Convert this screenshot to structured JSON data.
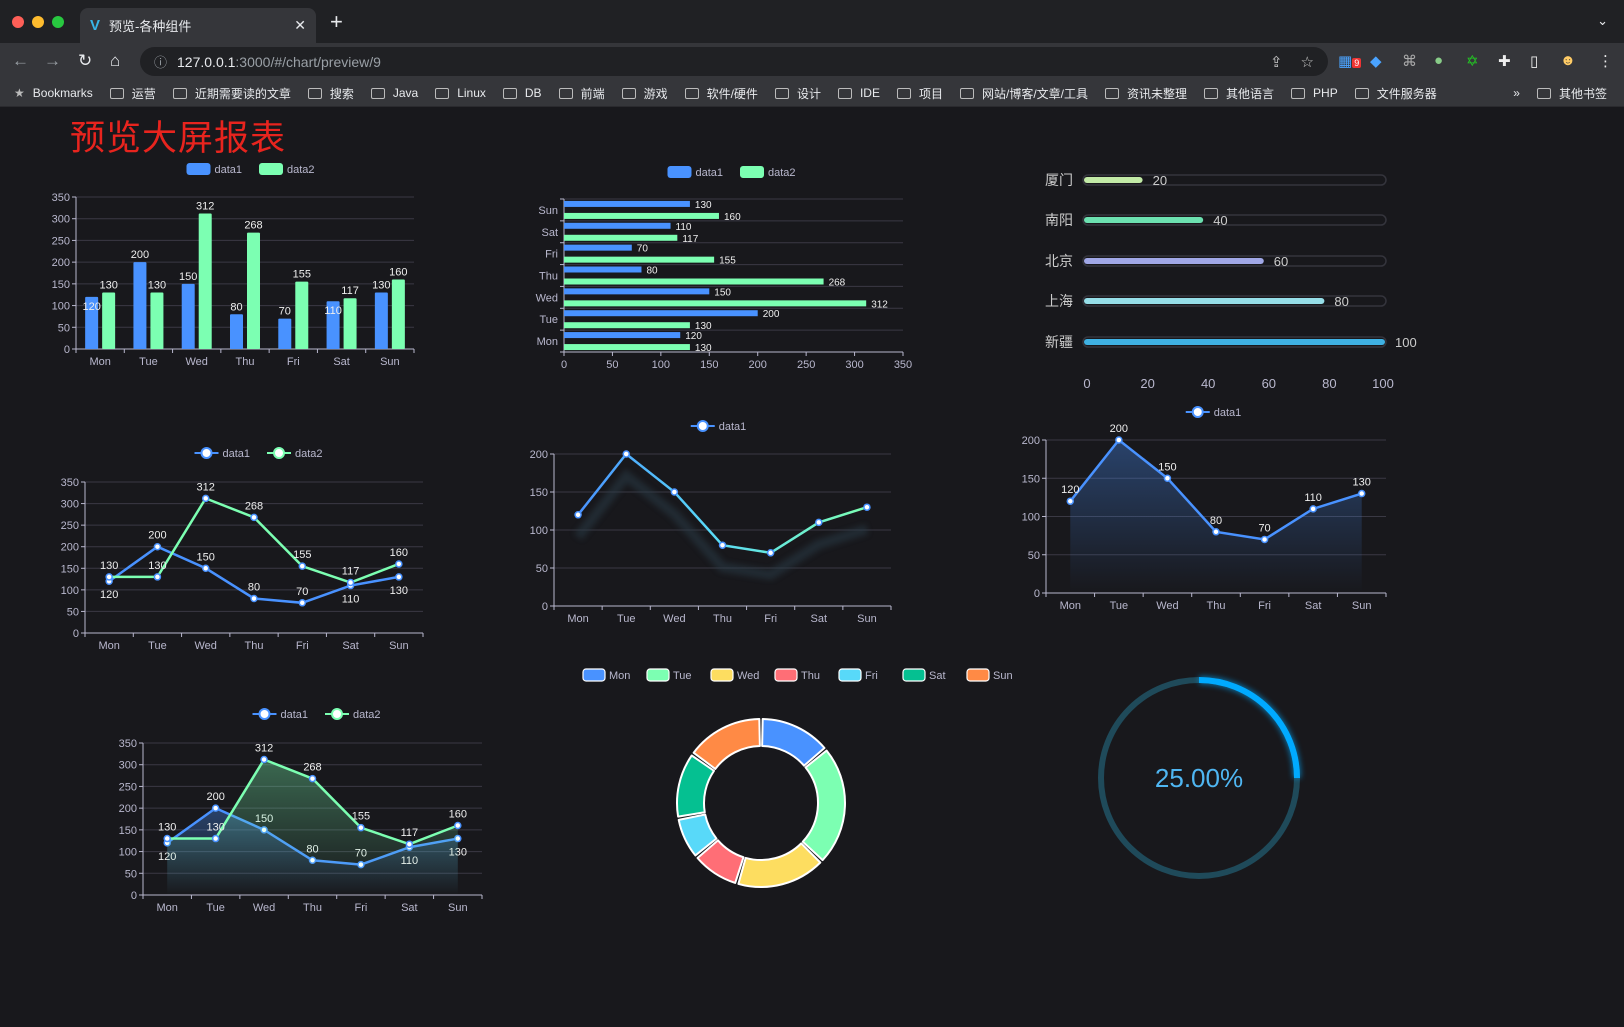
{
  "browser": {
    "tab_title": "预览-各种组件",
    "url_host": "127.0.0.1",
    "url_path": ":3000/#/chart/preview/9",
    "ext_badge": "9",
    "bookmarks_label": "Bookmarks",
    "bookmarks": [
      "运营",
      "近期需要读的文章",
      "搜索",
      "Java",
      "Linux",
      "DB",
      "前端",
      "游戏",
      "软件/硬件",
      "设计",
      "IDE",
      "项目",
      "网站/博客/文章/工具",
      "资讯未整理",
      "其他语言",
      "PHP",
      "文件服务器"
    ],
    "overflow": "»",
    "other_bookmarks": "其他书签"
  },
  "page": {
    "title": "预览大屏报表"
  },
  "colors": {
    "blue": "#4992ff",
    "green": "#7cffb2",
    "yellow": "#fddd60",
    "red": "#ff6e76",
    "cyan": "#58d9f9",
    "teal": "#05c091",
    "orange": "#ff8a45",
    "title": "#e8241e"
  },
  "chart_data": [
    {
      "id": "bar",
      "type": "bar",
      "categories": [
        "Mon",
        "Tue",
        "Wed",
        "Thu",
        "Fri",
        "Sat",
        "Sun"
      ],
      "series": [
        {
          "name": "data1",
          "values": [
            120,
            200,
            150,
            80,
            70,
            110,
            130
          ]
        },
        {
          "name": "data2",
          "values": [
            130,
            130,
            312,
            268,
            155,
            117,
            160
          ]
        }
      ],
      "ylim": [
        0,
        350
      ],
      "legend": "top-center",
      "grid": true,
      "data_labels": true
    },
    {
      "id": "hbar",
      "type": "bar",
      "orientation": "horizontal",
      "categories": [
        "Mon",
        "Tue",
        "Wed",
        "Thu",
        "Fri",
        "Sat",
        "Sun"
      ],
      "series": [
        {
          "name": "data1",
          "values": [
            120,
            200,
            150,
            80,
            70,
            110,
            130
          ]
        },
        {
          "name": "data2",
          "values": [
            130,
            130,
            312,
            268,
            155,
            117,
            160
          ]
        }
      ],
      "xlim": [
        0,
        350
      ],
      "legend": "top-center",
      "grid": true,
      "data_labels": true
    },
    {
      "id": "progress",
      "type": "bar",
      "orientation": "horizontal",
      "categories": [
        "厦门",
        "南阳",
        "北京",
        "上海",
        "新疆"
      ],
      "values": [
        20,
        40,
        60,
        80,
        100
      ],
      "colors": [
        "#c2eaa6",
        "#6ce0b0",
        "#a0a7e6",
        "#96dee8",
        "#3fb1e3"
      ],
      "xlim": [
        0,
        100
      ],
      "xticks": [
        0,
        20,
        40,
        60,
        80,
        100
      ]
    },
    {
      "id": "line2",
      "type": "line",
      "categories": [
        "Mon",
        "Tue",
        "Wed",
        "Thu",
        "Fri",
        "Sat",
        "Sun"
      ],
      "series": [
        {
          "name": "data1",
          "values": [
            120,
            200,
            150,
            80,
            70,
            110,
            130
          ]
        },
        {
          "name": "data2",
          "values": [
            130,
            130,
            312,
            268,
            155,
            117,
            160
          ]
        }
      ],
      "ylim": [
        0,
        350
      ],
      "legend": "top-center",
      "grid": true,
      "data_labels": true
    },
    {
      "id": "line1",
      "type": "line",
      "categories": [
        "Mon",
        "Tue",
        "Wed",
        "Thu",
        "Fri",
        "Sat",
        "Sun"
      ],
      "series": [
        {
          "name": "data1",
          "values": [
            120,
            200,
            150,
            80,
            70,
            110,
            130
          ]
        }
      ],
      "ylim": [
        0,
        200
      ],
      "legend": "top-center",
      "grid": true,
      "gradient_line": true
    },
    {
      "id": "area1",
      "type": "area",
      "categories": [
        "Mon",
        "Tue",
        "Wed",
        "Thu",
        "Fri",
        "Sat",
        "Sun"
      ],
      "series": [
        {
          "name": "data1",
          "values": [
            120,
            200,
            150,
            80,
            70,
            110,
            130
          ]
        }
      ],
      "ylim": [
        0,
        200
      ],
      "legend": "top-center",
      "grid": true,
      "data_labels": true
    },
    {
      "id": "area2",
      "type": "area",
      "categories": [
        "Mon",
        "Tue",
        "Wed",
        "Thu",
        "Fri",
        "Sat",
        "Sun"
      ],
      "series": [
        {
          "name": "data1",
          "values": [
            120,
            200,
            150,
            80,
            70,
            110,
            130
          ]
        },
        {
          "name": "data2",
          "values": [
            130,
            130,
            312,
            268,
            155,
            117,
            160
          ]
        }
      ],
      "ylim": [
        0,
        350
      ],
      "legend": "top-center",
      "grid": true,
      "data_labels": true
    },
    {
      "id": "donut",
      "type": "pie",
      "categories": [
        "Mon",
        "Tue",
        "Wed",
        "Thu",
        "Fri",
        "Sat",
        "Sun"
      ],
      "values": [
        120,
        200,
        150,
        80,
        70,
        110,
        130
      ],
      "donut": true,
      "legend": "top-center"
    },
    {
      "id": "gauge",
      "type": "gauge",
      "value": 25,
      "label": "25.00%"
    }
  ]
}
